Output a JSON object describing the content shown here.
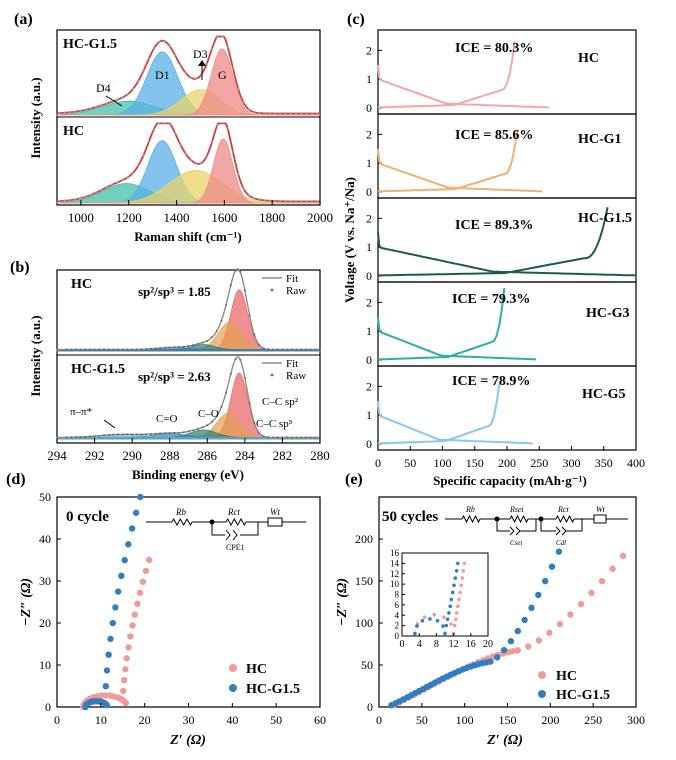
{
  "colors": {
    "hc": "#f29a9a",
    "hcg15": "#2f7fc2",
    "fit_gray": "#8c8c8c",
    "d1_fill": "#5ab0e8",
    "d4_fill": "#43c0a8",
    "d3_fill": "#e8d46a",
    "g_fill": "#ef8a86",
    "sp2_fill": "#e96060",
    "sp3_fill": "#e2a04e",
    "co_fill": "#2f7a72",
    "pipi_fill": "#5bb6c9",
    "curve_hc": "#f0a8a8",
    "curve_g1": "#f0b070",
    "curve_g15": "#1f5a52",
    "curve_g3": "#2ab0a8",
    "curve_g5": "#8ac8ec"
  },
  "chart_data": [
    {
      "id": "a",
      "panel_label": "(a)",
      "type": "line",
      "xlabel": "Raman shift (cm⁻¹)",
      "ylabel": "Intensity (a.u.)",
      "xlim": [
        900,
        2000
      ],
      "xticks": [
        "1000",
        "1200",
        "1400",
        "1600",
        "1800",
        "2000"
      ],
      "subpanels": [
        {
          "name": "HC-G1.5",
          "peak_labels": [
            "D4",
            "D1",
            "D3",
            "G"
          ],
          "peaks": [
            {
              "label": "D4",
              "center": 1200,
              "height": 0.18,
              "width": 110
            },
            {
              "label": "D1",
              "center": 1340,
              "height": 0.82,
              "width": 65
            },
            {
              "label": "D3",
              "center": 1500,
              "height": 0.33,
              "width": 80
            },
            {
              "label": "G",
              "center": 1590,
              "height": 0.86,
              "width": 45
            }
          ]
        },
        {
          "name": "HC",
          "peaks": [
            {
              "label": "D4",
              "center": 1190,
              "height": 0.25,
              "width": 100
            },
            {
              "label": "D1",
              "center": 1340,
              "height": 0.8,
              "width": 60
            },
            {
              "label": "D3",
              "center": 1480,
              "height": 0.42,
              "width": 110
            },
            {
              "label": "G",
              "center": 1595,
              "height": 0.82,
              "width": 40
            }
          ]
        }
      ]
    },
    {
      "id": "b",
      "panel_label": "(b)",
      "type": "line",
      "xlabel": "Binding energy (eV)",
      "ylabel": "Intensity (a.u.)",
      "xlim": [
        294,
        280
      ],
      "xticks": [
        "294",
        "292",
        "290",
        "288",
        "286",
        "284",
        "282",
        "280"
      ],
      "legend": [
        "Fit",
        "Raw"
      ],
      "subpanels": [
        {
          "name": "HC",
          "ratio": "sp²/sp³ = 1.85",
          "peaks": [
            {
              "label": "C–C sp²",
              "center": 284.3,
              "height": 0.82,
              "width": 0.45
            },
            {
              "label": "C–C sp³",
              "center": 284.8,
              "height": 0.38,
              "width": 0.6
            },
            {
              "label": "C–O",
              "center": 286.2,
              "height": 0.07,
              "width": 0.6
            },
            {
              "label": "C=O",
              "center": 287.8,
              "height": 0.03,
              "width": 0.8
            }
          ]
        },
        {
          "name": "HC-G1.5",
          "ratio": "sp²/sp³ = 2.63",
          "peak_labels": [
            "π–π*",
            "C=O",
            "C–O",
            "C–C sp²",
            "C–C sp³"
          ],
          "peaks": [
            {
              "label": "C–C sp²",
              "center": 284.3,
              "height": 0.85,
              "width": 0.45
            },
            {
              "label": "C–C sp³",
              "center": 284.9,
              "height": 0.32,
              "width": 0.6
            },
            {
              "label": "C–O",
              "center": 286.2,
              "height": 0.1,
              "width": 0.7
            },
            {
              "label": "C=O",
              "center": 288.0,
              "height": 0.05,
              "width": 0.9
            },
            {
              "label": "π–π*",
              "center": 290.5,
              "height": 0.04,
              "width": 1.2
            }
          ]
        }
      ]
    },
    {
      "id": "c",
      "panel_label": "(c)",
      "type": "line",
      "xlabel": "Specific capacity (mAh·g⁻¹)",
      "ylabel": "Voltage (V vs. Na⁺/Na)",
      "xlim": [
        0,
        400
      ],
      "ylim": [
        0,
        2.5
      ],
      "xticks": [
        "0",
        "50",
        "100",
        "150",
        "200",
        "250",
        "300",
        "350",
        "400"
      ],
      "yticks": [
        "0",
        "1",
        "2"
      ],
      "subpanels": [
        {
          "name": "HC",
          "ice": "ICE = 80.3%",
          "discharge_capacity": 265,
          "charge_capacity": 213
        },
        {
          "name": "HC-G1",
          "ice": "ICE = 85.6%",
          "discharge_capacity": 255,
          "charge_capacity": 218
        },
        {
          "name": "HC-G1.5",
          "ice": "ICE = 89.3%",
          "discharge_capacity": 400,
          "charge_capacity": 357
        },
        {
          "name": "HC-G3",
          "ice": "ICE = 79.3%",
          "discharge_capacity": 247,
          "charge_capacity": 196
        },
        {
          "name": "HC-G5",
          "ice": "ICE = 78.9%",
          "discharge_capacity": 241,
          "charge_capacity": 190
        }
      ]
    },
    {
      "id": "d",
      "panel_label": "(d)",
      "type": "scatter",
      "annotation": "0 cycle",
      "xlabel": "Z′ (Ω)",
      "ylabel": "−Z″ (Ω)",
      "xlim": [
        0,
        60
      ],
      "ylim": [
        0,
        50
      ],
      "xticks": [
        "0",
        "10",
        "20",
        "30",
        "40",
        "50",
        "60"
      ],
      "yticks": [
        "0",
        "10",
        "20",
        "30",
        "40",
        "50"
      ],
      "circuit_labels": [
        "Rb",
        "Rct",
        "Wt",
        "CPE1"
      ],
      "series": [
        {
          "name": "HC",
          "Rb": 6,
          "Rct": 10,
          "tail_end": [
            21,
            35
          ]
        },
        {
          "name": "HC-G1.5",
          "Rb": 6.5,
          "Rct": 5,
          "tail_end": [
            19,
            50
          ]
        }
      ]
    },
    {
      "id": "e",
      "panel_label": "(e)",
      "type": "scatter",
      "annotation": "50 cycles",
      "xlabel": "Z′ (Ω)",
      "ylabel": "−Z″ (Ω)",
      "xlim": [
        0,
        300
      ],
      "ylim": [
        0,
        250
      ],
      "xticks": [
        "0",
        "50",
        "100",
        "150",
        "200",
        "250",
        "300"
      ],
      "yticks": [
        "0",
        "50",
        "100",
        "150",
        "200"
      ],
      "circuit_labels": [
        "Rb",
        "Rsei",
        "Rct",
        "Wt",
        "Csei",
        "Cdl"
      ],
      "inset": {
        "xlim": [
          0,
          20
        ],
        "ylim": [
          0,
          16
        ],
        "xticks": [
          "0",
          "4",
          "8",
          "12",
          "16",
          "20"
        ],
        "yticks": [
          "0",
          "2",
          "4",
          "6",
          "8",
          "10",
          "12",
          "14",
          "16"
        ]
      },
      "series": [
        {
          "name": "HC",
          "Rb": 3,
          "Rsei": 9,
          "Rct": 150,
          "tail_end": [
            285,
            180
          ]
        },
        {
          "name": "HC-G1.5",
          "Rb": 3,
          "Rsei": 7,
          "Rct": 120,
          "tail_end": [
            210,
            185
          ]
        }
      ]
    }
  ]
}
